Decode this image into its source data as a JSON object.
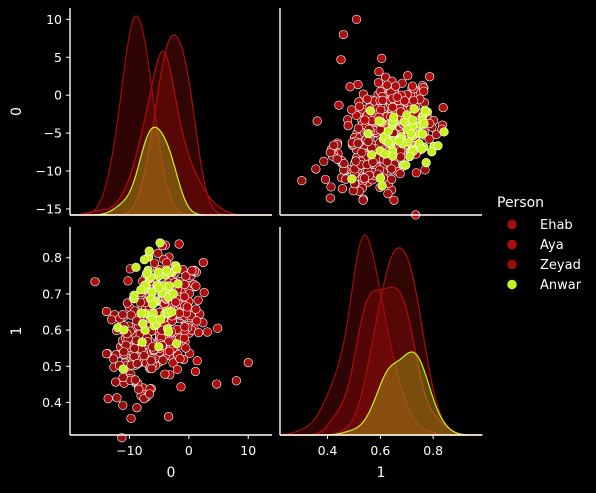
{
  "chart_data": {
    "type": "scatter",
    "variables": [
      "0",
      "1"
    ],
    "axes": {
      "0": {
        "label": "0",
        "ticks": [
          -15,
          -10,
          -5,
          0,
          5,
          10
        ],
        "xticks": [
          -10,
          0,
          10
        ],
        "range": [
          -20,
          14
        ]
      },
      "1": {
        "label": "1",
        "ticks": [
          0.4,
          0.5,
          0.6,
          0.7,
          0.8
        ],
        "xticks": [
          0.4,
          0.6,
          0.8
        ],
        "range_y": [
          0.31,
          0.885
        ],
        "range_x": [
          0.22,
          0.985
        ]
      }
    },
    "y0_range": [
      -15.8,
      11.5
    ],
    "legend": {
      "title": "Person",
      "position": "right",
      "entries": [
        {
          "name": "Ehab",
          "color": "#a60f0f"
        },
        {
          "name": "Aya",
          "color": "#b30c0c"
        },
        {
          "name": "Zeyad",
          "color": "#9a0e0e"
        },
        {
          "name": "Anwar",
          "color": "#c8f21f"
        }
      ]
    },
    "series": [
      {
        "name": "Ehab",
        "color": "#a60f0f",
        "mean0": -2.5,
        "sd0": 2.3,
        "mean1": 0.66,
        "sd1": 0.07,
        "n": 130
      },
      {
        "name": "Aya",
        "color": "#b30c0c",
        "mean0": -4.3,
        "sd0": 3.3,
        "mean1": 0.63,
        "sd1": 0.09,
        "n": 130
      },
      {
        "name": "Zeyad",
        "color": "#9a0e0e",
        "mean0": -8.8,
        "sd0": 2.4,
        "mean1": 0.54,
        "sd1": 0.07,
        "n": 130
      },
      {
        "name": "Anwar",
        "color": "#c8f21f",
        "mean0": -5.6,
        "sd0": 2.4,
        "mean1": 0.67,
        "sd1": 0.07,
        "n": 60
      }
    ],
    "outliers": [
      {
        "x0": 10,
        "x1": 0.51
      },
      {
        "x0": 8,
        "x1": 0.46
      }
    ]
  }
}
